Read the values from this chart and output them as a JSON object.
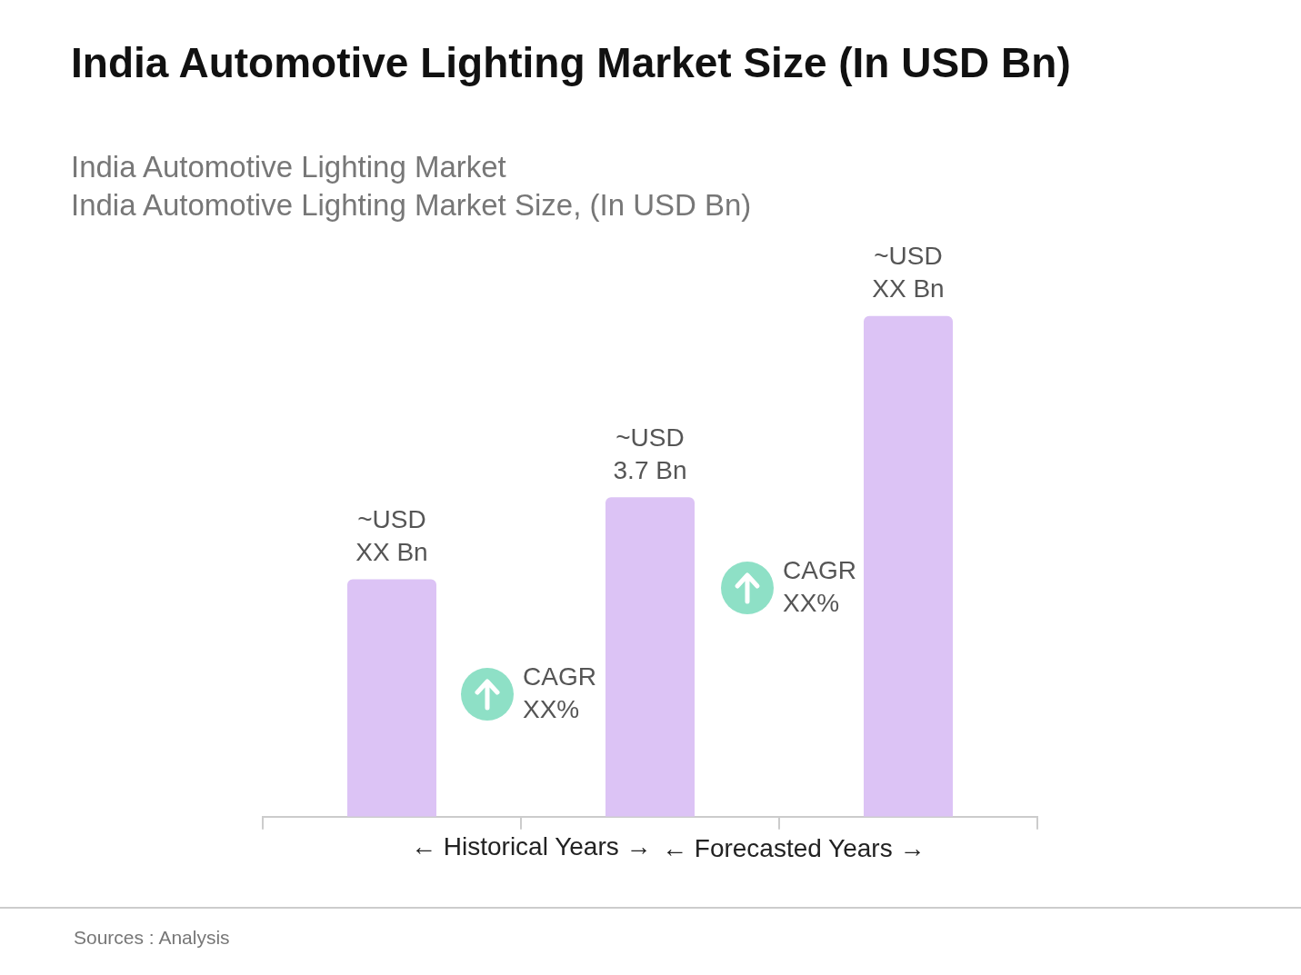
{
  "chart_data": {
    "type": "bar",
    "title": "India Automotive Lighting Market  Size (In USD Bn)",
    "subtitle": "India Automotive Lighting Market\nIndia Automotive Lighting Market Size, (In USD Bn)",
    "categories": [
      null,
      null,
      null
    ],
    "values": [
      2.75,
      3.7,
      5.8
    ],
    "tick_labels": "x",
    "color": "#dcc3f5",
    "value_labels": [
      "~USD\nXX Bn",
      "~USD\n3.7 Bn",
      "~USD\nXX Bn"
    ],
    "annotations": [
      "CAGR\nXX%",
      "CAGR\nXX%",
      "← Historical Years →",
      "← Forecasted Years →",
      "Sources : Analysis"
    ],
    "grid": false,
    "legend": false
  }
}
